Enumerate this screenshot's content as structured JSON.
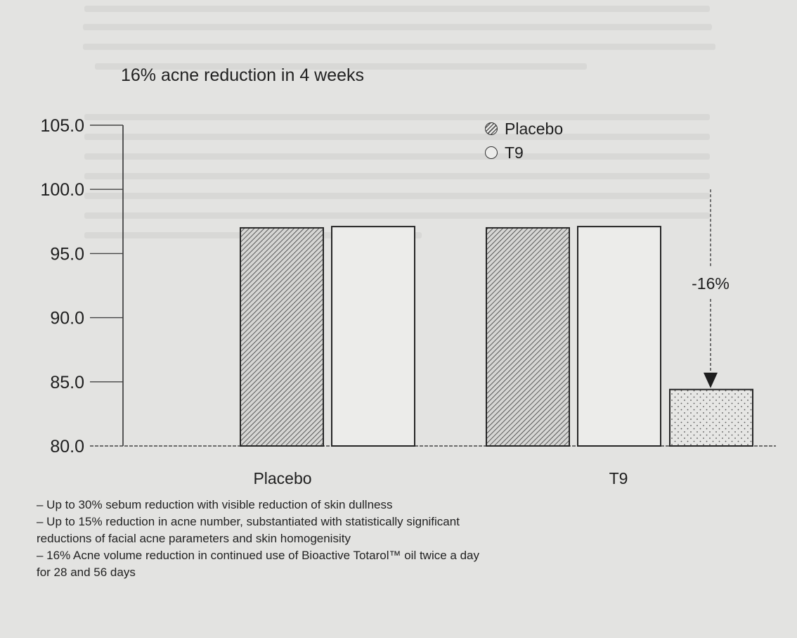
{
  "chart_data": {
    "type": "bar",
    "title": "16% acne reduction in 4 weeks",
    "categories": [
      "Placebo",
      "T9"
    ],
    "series": [
      {
        "name": "Placebo",
        "pattern": "hatched",
        "values": [
          97.0,
          97.0
        ]
      },
      {
        "name": "T9",
        "pattern": "open",
        "values": [
          97.1,
          97.1
        ]
      }
    ],
    "extra_bar": {
      "category": "T9",
      "value": 84.4,
      "pattern": "dotted"
    },
    "annotation": {
      "text": "-16%",
      "from": 100.0,
      "to": 84.4
    },
    "ylim": [
      80.0,
      105.0
    ],
    "yticks": [
      "105.0",
      "100.0",
      "95.0",
      "90.0",
      "85.0",
      "80.0"
    ],
    "legend_position": "top-right",
    "grid": false,
    "xlabel": "",
    "ylabel": ""
  },
  "notes": [
    "– Up to 30% sebum reduction with visible reduction of skin dullness",
    "– Up to 15% reduction in acne number, substantiated with statistically significant",
    "reductions of facial acne parameters and skin homogenisity",
    "– 16% Acne volume reduction in continued use of Bioactive Totarol™ oil twice a day",
    "for 28 and 56 days"
  ],
  "colors": {
    "background": "#e3e3e1",
    "ink": "#1e1e1e"
  }
}
